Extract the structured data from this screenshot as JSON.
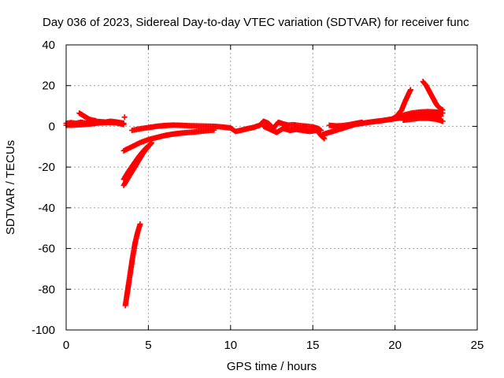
{
  "chart_data": {
    "type": "scatter",
    "title": "Day 036 of 2023, Sidereal Day-to-day VTEC variation (SDTVAR) for receiver func",
    "xlabel": "GPS time / hours",
    "ylabel": "SDTVAR / TECUs",
    "xlim": [
      0,
      25
    ],
    "ylim": [
      -100,
      40
    ],
    "xticks": [
      0,
      5,
      10,
      15,
      20,
      25
    ],
    "yticks": [
      -100,
      -80,
      -60,
      -40,
      -20,
      0,
      20,
      40
    ],
    "xtick_labels": [
      "0",
      "5",
      "10",
      "15",
      "20",
      "25"
    ],
    "ytick_labels": [
      "-100",
      "-80",
      "-60",
      "-40",
      "-20",
      "0",
      "20",
      "40"
    ],
    "grid": true,
    "marker": "+",
    "color": "#ff0000",
    "series": [
      {
        "segments": [
          [
            [
              0.0,
              1.5
            ],
            [
              0.3,
              1.8
            ],
            [
              0.6,
              1.5
            ],
            [
              0.9,
              2.0
            ],
            [
              1.2,
              1.6
            ],
            [
              1.5,
              2.2
            ],
            [
              1.8,
              2.4
            ],
            [
              2.1,
              2.3
            ],
            [
              2.4,
              2.1
            ],
            [
              2.7,
              2.5
            ],
            [
              3.0,
              2.2
            ],
            [
              3.3,
              1.8
            ],
            [
              3.5,
              1.5
            ]
          ],
          [
            [
              0.8,
              6.5
            ],
            [
              1.0,
              5.5
            ],
            [
              1.2,
              4.5
            ],
            [
              1.4,
              3.5
            ],
            [
              1.6,
              3.0
            ],
            [
              1.8,
              2.8
            ]
          ],
          [
            [
              0.0,
              0.5
            ],
            [
              0.5,
              0.6
            ],
            [
              1.0,
              0.9
            ],
            [
              1.5,
              1.2
            ],
            [
              2.0,
              1.7
            ],
            [
              2.5,
              1.9
            ],
            [
              3.0,
              1.8
            ],
            [
              3.5,
              0.9
            ]
          ],
          [
            [
              3.55,
              4.5
            ]
          ],
          [
            [
              3.6,
              -88
            ],
            [
              3.75,
              -80
            ],
            [
              3.9,
              -72
            ],
            [
              4.05,
              -64
            ],
            [
              4.2,
              -57
            ],
            [
              4.35,
              -52
            ],
            [
              4.5,
              -48
            ]
          ],
          [
            [
              3.5,
              -29
            ],
            [
              3.8,
              -25
            ],
            [
              4.1,
              -21
            ],
            [
              4.4,
              -17
            ],
            [
              4.7,
              -13
            ],
            [
              5.0,
              -10
            ],
            [
              5.2,
              -8
            ]
          ],
          [
            [
              3.5,
              -26
            ],
            [
              3.8,
              -22
            ],
            [
              4.1,
              -18.5
            ],
            [
              4.4,
              -15
            ],
            [
              4.7,
              -12
            ],
            [
              5.0,
              -9.5
            ]
          ],
          [
            [
              3.5,
              -12
            ],
            [
              4.0,
              -10
            ],
            [
              4.5,
              -8
            ],
            [
              5.0,
              -6.5
            ],
            [
              5.5,
              -5.5
            ],
            [
              6.0,
              -4.5
            ],
            [
              6.5,
              -3.8
            ],
            [
              7.0,
              -3.3
            ],
            [
              7.5,
              -3.0
            ],
            [
              8.0,
              -2.6
            ],
            [
              8.5,
              -2.2
            ],
            [
              9.0,
              -1.8
            ]
          ],
          [
            [
              4.0,
              -2
            ],
            [
              4.5,
              -1.2
            ],
            [
              5.0,
              -0.6
            ],
            [
              5.5,
              0.0
            ],
            [
              6.0,
              0.4
            ],
            [
              6.5,
              0.6
            ],
            [
              7.0,
              0.5
            ],
            [
              7.5,
              0.3
            ],
            [
              8.0,
              0.2
            ],
            [
              8.5,
              0.1
            ],
            [
              9.0,
              0.0
            ],
            [
              9.5,
              -0.3
            ],
            [
              10.0,
              -0.8
            ]
          ],
          [
            [
              10.0,
              -0.8
            ],
            [
              10.3,
              -2.5
            ],
            [
              10.6,
              -2.0
            ],
            [
              11.0,
              -1.2
            ],
            [
              11.4,
              -0.5
            ],
            [
              11.8,
              0.6
            ],
            [
              12.0,
              2.5
            ],
            [
              12.3,
              1.5
            ],
            [
              12.6,
              -1.0
            ],
            [
              12.9,
              2.0
            ],
            [
              13.2,
              1.2
            ],
            [
              13.5,
              0.6
            ],
            [
              13.8,
              0.8
            ],
            [
              14.1,
              0.5
            ],
            [
              14.4,
              0.2
            ],
            [
              14.7,
              0.0
            ],
            [
              15.0,
              -0.3
            ],
            [
              15.3,
              -1.0
            ],
            [
              15.5,
              -2.0
            ]
          ],
          [
            [
              12.0,
              0.0
            ],
            [
              12.4,
              -1.5
            ],
            [
              12.8,
              -3.0
            ],
            [
              13.2,
              -1.0
            ],
            [
              13.6,
              -2.0
            ],
            [
              14.0,
              -1.5
            ],
            [
              14.4,
              -2.0
            ],
            [
              14.8,
              -2.5
            ],
            [
              15.2,
              -2.0
            ]
          ],
          [
            [
              15.3,
              -2.5
            ],
            [
              15.5,
              -4.5
            ],
            [
              15.7,
              -6.0
            ]
          ],
          [
            [
              15.6,
              -4.0
            ],
            [
              16.0,
              -3.0
            ],
            [
              16.4,
              -2.0
            ],
            [
              16.8,
              -1.0
            ],
            [
              17.2,
              0.0
            ],
            [
              17.6,
              1.0
            ],
            [
              18.0,
              1.5
            ],
            [
              18.4,
              2.0
            ],
            [
              18.8,
              2.4
            ],
            [
              19.2,
              2.8
            ],
            [
              19.6,
              3.3
            ],
            [
              20.0,
              3.8
            ],
            [
              20.4,
              4.2
            ],
            [
              20.8,
              4.8
            ],
            [
              21.2,
              5.2
            ],
            [
              21.6,
              5.5
            ],
            [
              22.0,
              5.5
            ],
            [
              22.4,
              5.2
            ],
            [
              22.8,
              5.0
            ]
          ],
          [
            [
              16.0,
              0.5
            ],
            [
              16.4,
              0.2
            ],
            [
              16.8,
              0.3
            ],
            [
              17.2,
              0.8
            ],
            [
              17.6,
              1.4
            ],
            [
              18.0,
              2.0
            ]
          ],
          [
            [
              19.8,
              3.5
            ],
            [
              20.1,
              5.0
            ],
            [
              20.4,
              8.0
            ],
            [
              20.6,
              12.0
            ],
            [
              20.8,
              15.5
            ],
            [
              20.95,
              18.0
            ]
          ],
          [
            [
              20.0,
              4.0
            ],
            [
              20.5,
              5.5
            ],
            [
              21.0,
              6.5
            ],
            [
              21.5,
              7.0
            ],
            [
              22.0,
              7.2
            ],
            [
              22.5,
              7.0
            ],
            [
              22.9,
              6.5
            ]
          ],
          [
            [
              21.7,
              22.0
            ],
            [
              21.9,
              20.0
            ],
            [
              22.1,
              17.0
            ],
            [
              22.3,
              14.0
            ],
            [
              22.5,
              11.0
            ],
            [
              22.7,
              9.0
            ],
            [
              22.9,
              8.0
            ]
          ],
          [
            [
              20.5,
              3.0
            ],
            [
              21.0,
              3.5
            ],
            [
              21.5,
              4.0
            ],
            [
              22.0,
              4.0
            ],
            [
              22.5,
              3.5
            ],
            [
              22.9,
              2.5
            ]
          ]
        ]
      }
    ]
  }
}
